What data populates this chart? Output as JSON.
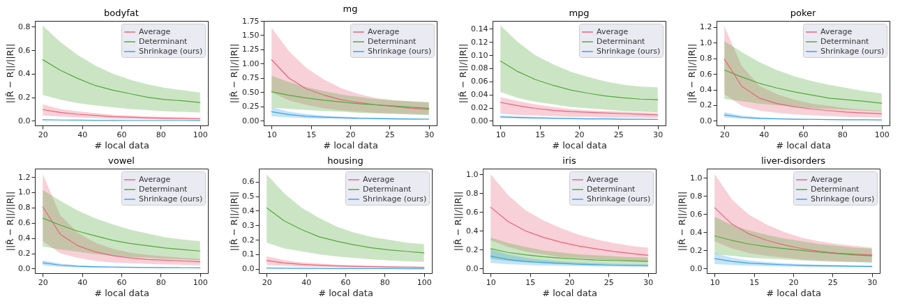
{
  "chart_data": [
    {
      "type": "line",
      "title": "bodyfat",
      "xlabel": "# local data",
      "ylabel": "||R̃ − R||/||R||",
      "legend": "top right",
      "x": [
        20,
        28.9,
        37.8,
        46.7,
        55.6,
        64.4,
        73.3,
        82.2,
        91.1,
        100
      ],
      "xlim": [
        16,
        104
      ],
      "xticks": [
        20,
        40,
        60,
        80,
        100
      ],
      "ylim": [
        -0.04,
        0.85
      ],
      "yticks": [
        {
          "value": 0,
          "label": "0.0"
        },
        0.2,
        0.4,
        0.6,
        0.8
      ],
      "series": [
        {
          "name": "Average",
          "color": "#e8637c",
          "values": [
            0.095,
            0.07,
            0.055,
            0.045,
            0.035,
            0.03,
            0.025,
            0.022,
            0.02,
            0.018
          ],
          "lower": [
            0.045,
            0.035,
            0.028,
            0.022,
            0.018,
            0.015,
            0.013,
            0.011,
            0.01,
            0.009
          ],
          "upper": [
            0.14,
            0.1,
            0.08,
            0.065,
            0.05,
            0.043,
            0.037,
            0.032,
            0.028,
            0.025
          ]
        },
        {
          "name": "Determinant",
          "color": "#53a83a",
          "values": [
            0.52,
            0.43,
            0.36,
            0.3,
            0.26,
            0.23,
            0.2,
            0.18,
            0.17,
            0.155
          ],
          "lower": [
            0.22,
            0.18,
            0.15,
            0.13,
            0.115,
            0.1,
            0.09,
            0.08,
            0.075,
            0.07
          ],
          "upper": [
            0.81,
            0.67,
            0.56,
            0.47,
            0.4,
            0.35,
            0.31,
            0.28,
            0.26,
            0.24
          ]
        },
        {
          "name": "Shrinkage (ours)",
          "color": "#3aa2e6",
          "values": [
            0.008,
            0.006,
            0.005,
            0.004,
            0.004,
            0.003,
            0.003,
            0.003,
            0.003,
            0.002
          ],
          "lower": [
            0.005,
            0.004,
            0.003,
            0.003,
            0.002,
            0.002,
            0.002,
            0.002,
            0.002,
            0.001
          ],
          "upper": [
            0.011,
            0.009,
            0.007,
            0.006,
            0.005,
            0.005,
            0.004,
            0.004,
            0.004,
            0.003
          ]
        }
      ]
    },
    {
      "type": "line",
      "title": "mg",
      "xlabel": "# local data",
      "ylabel": "||R̃ − R||/||R||",
      "legend": "top right",
      "x": [
        10,
        12.2,
        14.4,
        16.7,
        18.9,
        21.1,
        23.3,
        25.6,
        27.8,
        30
      ],
      "xlim": [
        9,
        31
      ],
      "xticks": [
        10,
        15,
        20,
        25,
        30
      ],
      "ylim": [
        -0.08,
        1.75
      ],
      "yticks": [
        {
          "value": 0,
          "label": "0.00"
        },
        0.25,
        {
          "value": 0.5,
          "label": "0.50"
        },
        0.75,
        {
          "value": 1,
          "label": "1.00"
        },
        1.25,
        {
          "value": 1.5,
          "label": "1.50"
        },
        1.75
      ],
      "series": [
        {
          "name": "Average",
          "color": "#e8637c",
          "values": [
            1.07,
            0.75,
            0.56,
            0.45,
            0.37,
            0.32,
            0.28,
            0.25,
            0.22,
            0.2
          ],
          "lower": [
            0.5,
            0.36,
            0.28,
            0.22,
            0.18,
            0.16,
            0.14,
            0.13,
            0.12,
            0.11
          ],
          "upper": [
            1.63,
            1.22,
            0.93,
            0.72,
            0.57,
            0.47,
            0.4,
            0.36,
            0.34,
            0.32
          ]
        },
        {
          "name": "Determinant",
          "color": "#53a83a",
          "values": [
            0.51,
            0.45,
            0.4,
            0.36,
            0.33,
            0.3,
            0.28,
            0.26,
            0.24,
            0.22
          ],
          "lower": [
            0.23,
            0.21,
            0.19,
            0.17,
            0.16,
            0.14,
            0.13,
            0.12,
            0.11,
            0.1
          ],
          "upper": [
            0.79,
            0.68,
            0.59,
            0.52,
            0.46,
            0.42,
            0.38,
            0.36,
            0.34,
            0.33
          ]
        },
        {
          "name": "Shrinkage (ours)",
          "color": "#3aa2e6",
          "values": [
            0.16,
            0.11,
            0.08,
            0.065,
            0.055,
            0.045,
            0.04,
            0.035,
            0.032,
            0.03
          ],
          "lower": [
            0.08,
            0.06,
            0.045,
            0.04,
            0.035,
            0.03,
            0.027,
            0.025,
            0.022,
            0.02
          ],
          "upper": [
            0.24,
            0.16,
            0.12,
            0.09,
            0.075,
            0.06,
            0.055,
            0.05,
            0.045,
            0.04
          ]
        }
      ]
    },
    {
      "type": "line",
      "title": "mpg",
      "xlabel": "# local data",
      "ylabel": "||R̃ − R||/||R||",
      "legend": "top right",
      "x": [
        10,
        12.2,
        14.4,
        16.7,
        18.9,
        21.1,
        23.3,
        25.6,
        27.8,
        30
      ],
      "xlim": [
        9,
        31
      ],
      "xticks": [
        10,
        15,
        20,
        25,
        30
      ],
      "ylim": [
        -0.007,
        0.152
      ],
      "yticks": [
        {
          "value": 0,
          "label": "0.00"
        },
        0.02,
        0.04,
        0.06,
        0.08,
        {
          "value": 0.1,
          "label": "0.10"
        },
        0.12,
        0.14
      ],
      "series": [
        {
          "name": "Average",
          "color": "#e8637c",
          "values": [
            0.028,
            0.023,
            0.019,
            0.016,
            0.014,
            0.013,
            0.012,
            0.011,
            0.01,
            0.009
          ],
          "lower": [
            0.011,
            0.009,
            0.008,
            0.007,
            0.006,
            0.006,
            0.005,
            0.005,
            0.005,
            0.004
          ],
          "upper": [
            0.036,
            0.03,
            0.025,
            0.021,
            0.018,
            0.016,
            0.015,
            0.014,
            0.013,
            0.012
          ]
        },
        {
          "name": "Determinant",
          "color": "#53a83a",
          "values": [
            0.091,
            0.075,
            0.063,
            0.054,
            0.047,
            0.042,
            0.038,
            0.035,
            0.033,
            0.032
          ],
          "lower": [
            0.044,
            0.035,
            0.029,
            0.025,
            0.021,
            0.019,
            0.017,
            0.015,
            0.014,
            0.013
          ],
          "upper": [
            0.145,
            0.12,
            0.1,
            0.086,
            0.075,
            0.067,
            0.06,
            0.055,
            0.052,
            0.051
          ]
        },
        {
          "name": "Shrinkage (ours)",
          "color": "#3aa2e6",
          "values": [
            0.006,
            0.005,
            0.0045,
            0.004,
            0.0035,
            0.003,
            0.003,
            0.0025,
            0.0025,
            0.002
          ],
          "lower": [
            0.004,
            0.0035,
            0.003,
            0.003,
            0.0025,
            0.002,
            0.002,
            0.0018,
            0.0018,
            0.0015
          ],
          "upper": [
            0.008,
            0.007,
            0.006,
            0.005,
            0.0045,
            0.004,
            0.004,
            0.0035,
            0.0032,
            0.003
          ]
        }
      ]
    },
    {
      "type": "line",
      "title": "poker",
      "xlabel": "# local data",
      "ylabel": "||R̃ − R||/||R||",
      "legend": "top right",
      "x": [
        20,
        28.9,
        37.8,
        46.7,
        55.6,
        64.4,
        73.3,
        82.2,
        91.1,
        100
      ],
      "xlim": [
        16,
        104
      ],
      "xticks": [
        20,
        40,
        60,
        80,
        100
      ],
      "ylim": [
        -0.06,
        1.28
      ],
      "yticks": [
        {
          "value": 0,
          "label": "0.0"
        },
        0.2,
        0.4,
        0.6,
        0.8,
        {
          "value": 1,
          "label": "1.0"
        },
        1.2
      ],
      "series": [
        {
          "name": "Average",
          "color": "#e8637c",
          "values": [
            0.79,
            0.44,
            0.29,
            0.22,
            0.18,
            0.15,
            0.13,
            0.11,
            0.1,
            0.09
          ],
          "lower": [
            0.34,
            0.19,
            0.13,
            0.1,
            0.08,
            0.07,
            0.06,
            0.05,
            0.045,
            0.04
          ],
          "upper": [
            1.21,
            0.7,
            0.45,
            0.34,
            0.27,
            0.22,
            0.19,
            0.16,
            0.14,
            0.13
          ]
        },
        {
          "name": "Determinant",
          "color": "#53a83a",
          "values": [
            0.65,
            0.56,
            0.48,
            0.42,
            0.37,
            0.33,
            0.29,
            0.27,
            0.25,
            0.225
          ],
          "lower": [
            0.28,
            0.25,
            0.22,
            0.2,
            0.18,
            0.16,
            0.15,
            0.14,
            0.13,
            0.12
          ],
          "upper": [
            1.02,
            0.88,
            0.75,
            0.65,
            0.57,
            0.51,
            0.46,
            0.42,
            0.38,
            0.35
          ]
        },
        {
          "name": "Shrinkage (ours)",
          "color": "#3aa2e6",
          "values": [
            0.075,
            0.045,
            0.03,
            0.025,
            0.02,
            0.018,
            0.015,
            0.013,
            0.012,
            0.01
          ],
          "lower": [
            0.04,
            0.025,
            0.018,
            0.015,
            0.012,
            0.011,
            0.009,
            0.008,
            0.007,
            0.006
          ],
          "upper": [
            0.11,
            0.065,
            0.045,
            0.035,
            0.028,
            0.025,
            0.021,
            0.018,
            0.017,
            0.015
          ]
        }
      ]
    },
    {
      "type": "line",
      "title": "vowel",
      "xlabel": "# local data",
      "ylabel": "||R̃ − R||/||R||",
      "legend": "top right",
      "x": [
        20,
        28.9,
        37.8,
        46.7,
        55.6,
        64.4,
        73.3,
        82.2,
        91.1,
        100
      ],
      "xlim": [
        16,
        104
      ],
      "xticks": [
        20,
        40,
        60,
        80,
        100
      ],
      "ylim": [
        -0.06,
        1.31
      ],
      "yticks": [
        {
          "value": 0,
          "label": "0.0"
        },
        0.2,
        0.4,
        0.6,
        0.8,
        {
          "value": 1,
          "label": "1.0"
        },
        1.2
      ],
      "series": [
        {
          "name": "Average",
          "color": "#e8637c",
          "values": [
            0.81,
            0.45,
            0.3,
            0.22,
            0.17,
            0.14,
            0.12,
            0.11,
            0.1,
            0.09
          ],
          "lower": [
            0.36,
            0.2,
            0.14,
            0.1,
            0.08,
            0.07,
            0.06,
            0.055,
            0.05,
            0.045
          ],
          "upper": [
            1.24,
            0.7,
            0.47,
            0.34,
            0.26,
            0.21,
            0.18,
            0.16,
            0.14,
            0.13
          ]
        },
        {
          "name": "Determinant",
          "color": "#53a83a",
          "values": [
            0.66,
            0.57,
            0.49,
            0.43,
            0.37,
            0.33,
            0.3,
            0.27,
            0.25,
            0.23
          ],
          "lower": [
            0.29,
            0.25,
            0.22,
            0.19,
            0.17,
            0.15,
            0.14,
            0.13,
            0.12,
            0.11
          ],
          "upper": [
            1.03,
            0.89,
            0.76,
            0.66,
            0.58,
            0.51,
            0.46,
            0.41,
            0.38,
            0.36
          ]
        },
        {
          "name": "Shrinkage (ours)",
          "color": "#3aa2e6",
          "values": [
            0.075,
            0.045,
            0.03,
            0.024,
            0.02,
            0.017,
            0.014,
            0.012,
            0.011,
            0.01
          ],
          "lower": [
            0.04,
            0.025,
            0.018,
            0.014,
            0.012,
            0.01,
            0.008,
            0.007,
            0.006,
            0.006
          ],
          "upper": [
            0.11,
            0.065,
            0.045,
            0.034,
            0.028,
            0.024,
            0.02,
            0.017,
            0.016,
            0.014
          ]
        }
      ]
    },
    {
      "type": "line",
      "title": "housing",
      "xlabel": "# local data",
      "ylabel": "||R̃ − R||/||R||",
      "legend": "top right",
      "x": [
        20,
        28.9,
        37.8,
        46.7,
        55.6,
        64.4,
        73.3,
        82.2,
        91.1,
        100
      ],
      "xlim": [
        16,
        104
      ],
      "xticks": [
        20,
        40,
        60,
        80,
        100
      ],
      "ylim": [
        -0.03,
        0.69
      ],
      "yticks": [
        {
          "value": 0,
          "label": "0.0"
        },
        0.1,
        0.2,
        0.3,
        0.4,
        0.5,
        0.6
      ],
      "series": [
        {
          "name": "Average",
          "color": "#e8637c",
          "values": [
            0.057,
            0.04,
            0.031,
            0.025,
            0.02,
            0.017,
            0.015,
            0.013,
            0.011,
            0.01
          ],
          "lower": [
            0.027,
            0.02,
            0.016,
            0.013,
            0.011,
            0.009,
            0.008,
            0.007,
            0.006,
            0.005
          ],
          "upper": [
            0.087,
            0.06,
            0.045,
            0.036,
            0.029,
            0.024,
            0.021,
            0.018,
            0.016,
            0.015
          ]
        },
        {
          "name": "Determinant",
          "color": "#53a83a",
          "values": [
            0.42,
            0.33,
            0.27,
            0.22,
            0.19,
            0.165,
            0.145,
            0.13,
            0.12,
            0.11
          ],
          "lower": [
            0.18,
            0.14,
            0.12,
            0.1,
            0.085,
            0.075,
            0.065,
            0.058,
            0.052,
            0.048
          ],
          "upper": [
            0.65,
            0.52,
            0.42,
            0.35,
            0.29,
            0.25,
            0.22,
            0.2,
            0.18,
            0.17
          ]
        },
        {
          "name": "Shrinkage (ours)",
          "color": "#3aa2e6",
          "values": [
            0.005,
            0.004,
            0.003,
            0.003,
            0.002,
            0.002,
            0.002,
            0.002,
            0.001,
            0.001
          ],
          "lower": [
            0.003,
            0.002,
            0.002,
            0.002,
            0.001,
            0.001,
            0.001,
            0.001,
            0.001,
            0.001
          ],
          "upper": [
            0.008,
            0.006,
            0.005,
            0.004,
            0.003,
            0.003,
            0.003,
            0.003,
            0.002,
            0.002
          ]
        }
      ]
    },
    {
      "type": "line",
      "title": "iris",
      "xlabel": "# local data",
      "ylabel": "||R̃ − R||/||R||",
      "legend": "top right",
      "x": [
        10,
        12.2,
        14.4,
        16.7,
        18.9,
        21.1,
        23.3,
        25.6,
        27.8,
        30
      ],
      "xlim": [
        9,
        31
      ],
      "xticks": [
        10,
        15,
        20,
        25,
        30
      ],
      "ylim": [
        -0.05,
        1.06
      ],
      "yticks": [
        {
          "value": 0,
          "label": "0.0"
        },
        0.2,
        0.4,
        0.6,
        0.8,
        {
          "value": 1,
          "label": "1.0"
        }
      ],
      "series": [
        {
          "name": "Average",
          "color": "#e8637c",
          "values": [
            0.65,
            0.5,
            0.4,
            0.33,
            0.28,
            0.24,
            0.21,
            0.18,
            0.16,
            0.14
          ],
          "lower": [
            0.3,
            0.23,
            0.18,
            0.15,
            0.12,
            0.11,
            0.1,
            0.09,
            0.08,
            0.07
          ],
          "upper": [
            1.0,
            0.78,
            0.62,
            0.51,
            0.43,
            0.36,
            0.31,
            0.27,
            0.24,
            0.22
          ]
        },
        {
          "name": "Determinant",
          "color": "#53a83a",
          "values": [
            0.21,
            0.17,
            0.145,
            0.125,
            0.11,
            0.1,
            0.09,
            0.085,
            0.08,
            0.075
          ],
          "lower": [
            0.1,
            0.08,
            0.065,
            0.058,
            0.052,
            0.048,
            0.045,
            0.042,
            0.04,
            0.038
          ],
          "upper": [
            0.33,
            0.27,
            0.23,
            0.19,
            0.17,
            0.15,
            0.14,
            0.13,
            0.12,
            0.115
          ]
        },
        {
          "name": "Shrinkage (ours)",
          "color": "#3aa2e6",
          "values": [
            0.13,
            0.095,
            0.075,
            0.062,
            0.052,
            0.045,
            0.04,
            0.035,
            0.032,
            0.03
          ],
          "lower": [
            0.06,
            0.045,
            0.038,
            0.032,
            0.028,
            0.025,
            0.022,
            0.02,
            0.018,
            0.017
          ],
          "upper": [
            0.2,
            0.15,
            0.115,
            0.09,
            0.075,
            0.063,
            0.055,
            0.05,
            0.046,
            0.042
          ]
        }
      ]
    },
    {
      "type": "line",
      "title": "liver-disorders",
      "xlabel": "# local data",
      "ylabel": "||R̃ − R||/||R||",
      "legend": "top right",
      "x": [
        10,
        12.2,
        14.4,
        16.7,
        18.9,
        21.1,
        23.3,
        25.6,
        27.8,
        30
      ],
      "xlim": [
        9,
        31
      ],
      "xticks": [
        10,
        15,
        20,
        25,
        30
      ],
      "ylim": [
        -0.05,
        1.1
      ],
      "yticks": [
        {
          "value": 0,
          "label": "0.0"
        },
        0.2,
        0.4,
        0.6,
        0.8,
        {
          "value": 1,
          "label": "1.0"
        }
      ],
      "series": [
        {
          "name": "Average",
          "color": "#e8637c",
          "values": [
            0.67,
            0.49,
            0.38,
            0.31,
            0.26,
            0.22,
            0.19,
            0.17,
            0.16,
            0.15
          ],
          "lower": [
            0.3,
            0.22,
            0.17,
            0.14,
            0.12,
            0.1,
            0.09,
            0.08,
            0.075,
            0.07
          ],
          "upper": [
            1.04,
            0.76,
            0.59,
            0.48,
            0.4,
            0.34,
            0.3,
            0.27,
            0.25,
            0.23
          ]
        },
        {
          "name": "Determinant",
          "color": "#53a83a",
          "values": [
            0.36,
            0.31,
            0.27,
            0.24,
            0.22,
            0.2,
            0.18,
            0.165,
            0.15,
            0.14
          ],
          "lower": [
            0.16,
            0.14,
            0.12,
            0.11,
            0.1,
            0.09,
            0.08,
            0.075,
            0.07,
            0.065
          ],
          "upper": [
            0.57,
            0.48,
            0.42,
            0.37,
            0.33,
            0.3,
            0.27,
            0.25,
            0.23,
            0.22
          ]
        },
        {
          "name": "Shrinkage (ours)",
          "color": "#3aa2e6",
          "values": [
            0.11,
            0.08,
            0.06,
            0.05,
            0.042,
            0.036,
            0.032,
            0.029,
            0.026,
            0.024
          ],
          "lower": [
            0.05,
            0.04,
            0.032,
            0.027,
            0.023,
            0.02,
            0.018,
            0.016,
            0.015,
            0.014
          ],
          "upper": [
            0.17,
            0.12,
            0.09,
            0.072,
            0.06,
            0.05,
            0.044,
            0.04,
            0.036,
            0.033
          ]
        }
      ]
    }
  ]
}
